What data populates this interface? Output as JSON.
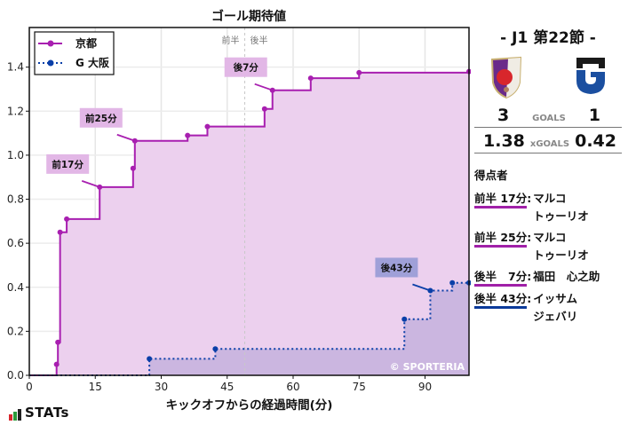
{
  "chart_data": {
    "type": "line",
    "title": "ゴール期待値",
    "xlabel": "キックオフからの経過時間(分)",
    "ylabel": "",
    "xlim": [
      0,
      100
    ],
    "ylim": [
      0,
      1.58
    ],
    "xticks": [
      0,
      15,
      30,
      45,
      60,
      75,
      90
    ],
    "yticks": [
      0.0,
      0.2,
      0.4,
      0.6,
      0.8,
      1.0,
      1.2,
      1.4
    ],
    "grid": true,
    "legend_position": "upper left",
    "half_labels": {
      "first": "前半",
      "second": "後半",
      "halftime_x": 49
    },
    "series": [
      {
        "name": "京都",
        "color": "#a81fb0",
        "fill": "#ecd0ee",
        "style": "solid",
        "x": [
          0,
          6.2,
          6.5,
          7.0,
          8.5,
          16.0,
          23.6,
          24.0,
          36.0,
          40.5,
          53.5,
          55.3,
          64.0,
          75.0,
          100
        ],
        "y": [
          0,
          0.05,
          0.15,
          0.65,
          0.71,
          0.855,
          0.94,
          1.065,
          1.09,
          1.13,
          1.21,
          1.295,
          1.35,
          1.375,
          1.38
        ]
      },
      {
        "name": "G大阪",
        "color": "#0a3fa8",
        "fill": "#c5b2dd",
        "style": "dotted",
        "x": [
          0,
          27.3,
          42.3,
          85.3,
          91.2,
          96.2,
          100
        ],
        "y": [
          0,
          0.075,
          0.12,
          0.255,
          0.385,
          0.42,
          0.42
        ]
      }
    ],
    "annotations": [
      {
        "text": "前17分",
        "x": 16.0,
        "y": 0.855,
        "series": "京都"
      },
      {
        "text": "前25分",
        "x": 24.0,
        "y": 1.065,
        "series": "京都"
      },
      {
        "text": "後7分",
        "x": 55.3,
        "y": 1.295,
        "series": "京都"
      },
      {
        "text": "後43分",
        "x": 91.2,
        "y": 0.385,
        "series": "G大阪"
      }
    ],
    "watermark": "© SPORTERIA"
  },
  "legend": {
    "home": "京都",
    "away": "G 大阪"
  },
  "panel": {
    "round": "-  J1 第22節  -",
    "home_score": "3",
    "away_score": "1",
    "goals_label": "GOALS",
    "home_xg": "1.38",
    "away_xg": "0.42",
    "xg_label": "xGOALS",
    "scorers_title": "得点者",
    "scorers": [
      {
        "time": "前半 17分",
        "name": "マルコ\nトゥーリオ",
        "team": "home"
      },
      {
        "time": "前半 25分",
        "name": "マルコ\nトゥーリオ",
        "team": "home"
      },
      {
        "time": "後半   7分",
        "name": "福田　心之助",
        "team": "home"
      },
      {
        "time": "後半 43分",
        "name": "イッサム\nジェバリ",
        "team": "away"
      }
    ]
  },
  "footer": {
    "brand": "STATs"
  }
}
